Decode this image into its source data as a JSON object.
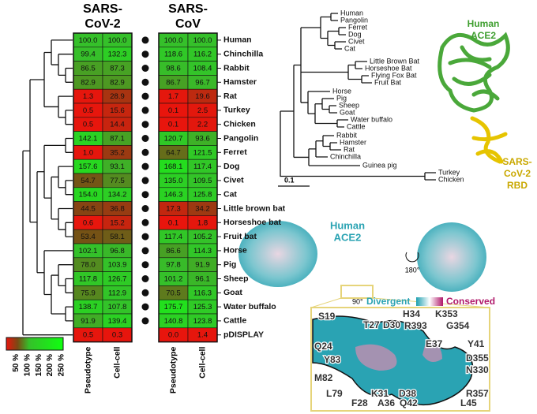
{
  "heatmap": {
    "rows": [
      "Human",
      "Chinchilla",
      "Rabbit",
      "Hamster",
      "Rat",
      "Turkey",
      "Chicken",
      "Pangolin",
      "Ferret",
      "Dog",
      "Civet",
      "Cat",
      "Little brown bat",
      "Horseshoe bat",
      "Fruit bat",
      "Horse",
      "Pig",
      "Sheep",
      "Goat",
      "Water buffalo",
      "Cattle",
      "pDISPLAY"
    ],
    "groups": [
      {
        "title": [
          "SARS-",
          "CoV-2"
        ],
        "columns": [
          "Pseudotype",
          "Cell-cell"
        ],
        "values": [
          [
            "100.0",
            "100.0"
          ],
          [
            "99.4",
            "132.3"
          ],
          [
            "86.5",
            "87.3"
          ],
          [
            "82.9",
            "82.9"
          ],
          [
            "1.3",
            "28.9"
          ],
          [
            "0.5",
            "15.6"
          ],
          [
            "0.5",
            "14.4"
          ],
          [
            "142.1",
            "87.1"
          ],
          [
            "1.0",
            "35.2"
          ],
          [
            "157.6",
            "93.1"
          ],
          [
            "54.7",
            "77.5"
          ],
          [
            "154.0",
            "134.2"
          ],
          [
            "44.5",
            "36.8"
          ],
          [
            "0.6",
            "15.2"
          ],
          [
            "53.4",
            "58.1"
          ],
          [
            "102.1",
            "96.8"
          ],
          [
            "78.0",
            "103.9"
          ],
          [
            "117.8",
            "126.7"
          ],
          [
            "75.9",
            "112.9"
          ],
          [
            "138.7",
            "107.8"
          ],
          [
            "91.9",
            "139.4"
          ],
          [
            "0.5",
            "0.3"
          ]
        ]
      },
      {
        "title": [
          "SARS-",
          "CoV"
        ],
        "columns": [
          "Pseudotype",
          "Cell-cell"
        ],
        "values": [
          [
            "100.0",
            "100.0"
          ],
          [
            "118.6",
            "116.2"
          ],
          [
            "98.6",
            "108.4"
          ],
          [
            "86.7",
            "96.7"
          ],
          [
            "1.7",
            "19.6"
          ],
          [
            "0.1",
            "2.5"
          ],
          [
            "0.1",
            "2.2"
          ],
          [
            "120.7",
            "93.6"
          ],
          [
            "64.7",
            "121.5"
          ],
          [
            "168.1",
            "117.4"
          ],
          [
            "135.0",
            "109.5"
          ],
          [
            "146.3",
            "125.8"
          ],
          [
            "17.3",
            "34.2"
          ],
          [
            "0.1",
            "1.8"
          ],
          [
            "117.4",
            "105.2"
          ],
          [
            "86.6",
            "114.3"
          ],
          [
            "97.8",
            "91.9"
          ],
          [
            "101.2",
            "96.1"
          ],
          [
            "70.5",
            "116.3"
          ],
          [
            "175.7",
            "125.3"
          ],
          [
            "140.8",
            "123.8"
          ],
          [
            "0.0",
            "1.4"
          ]
        ]
      }
    ],
    "legend": [
      "50 %",
      "100 %",
      "150 %",
      "200 %",
      "250 %"
    ]
  },
  "tree": {
    "leaves": [
      "Human",
      "Pangolin",
      "Ferret",
      "Dog",
      "Civet",
      "Cat",
      "Little Brown Bat",
      "Horseshoe Bat",
      "Flying Fox Bat",
      "Fruit Bat",
      "Horse",
      "Pig",
      "Sheep",
      "Goat",
      "Water buffalo",
      "Cattle",
      "Rabbit",
      "Hamster",
      "Rat",
      "Chinchilla",
      "Guinea pig",
      "Turkey",
      "Chicken"
    ],
    "scale": "0.1"
  },
  "structure": {
    "ace2": [
      "Human",
      "ACE2"
    ],
    "rbd": [
      "SARS-",
      "CoV-2",
      "RBD"
    ]
  },
  "surface": {
    "title": [
      "Human",
      "ACE2"
    ],
    "rotation_top": "180°",
    "rotation_side": "90°",
    "divergent": "Divergent",
    "conserved": "Conserved",
    "residues": [
      "S19",
      "T27",
      "D30",
      "H34",
      "K353",
      "R393",
      "G354",
      "E37",
      "Y41",
      "Q24",
      "Y83",
      "D355",
      "N330",
      "M82",
      "L79",
      "K31",
      "D38",
      "R357",
      "F28",
      "A36",
      "Q42",
      "L45"
    ]
  }
}
